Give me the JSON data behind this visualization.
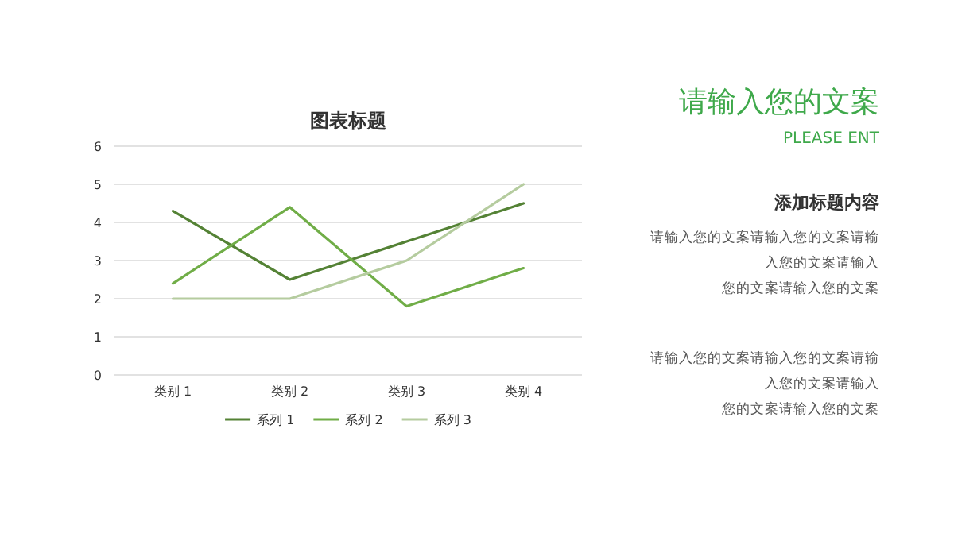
{
  "chart_data": {
    "type": "line",
    "title": "图表标题",
    "categories": [
      "类别 1",
      "类别 2",
      "类别 3",
      "类别 4"
    ],
    "series": [
      {
        "name": "系列 1",
        "color": "#548235",
        "values": [
          4.3,
          2.5,
          3.5,
          4.5
        ]
      },
      {
        "name": "系列 2",
        "color": "#70ad47",
        "values": [
          2.4,
          4.4,
          1.8,
          2.8
        ]
      },
      {
        "name": "系列 3",
        "color": "#b5cc9f",
        "values": [
          2,
          2,
          3,
          5
        ]
      }
    ],
    "ylim": [
      0,
      6
    ],
    "yticks": [
      0,
      1,
      2,
      3,
      4,
      5,
      6
    ],
    "grid": "y",
    "legend": "bottom",
    "marker": "none",
    "line_style": "solid",
    "annotations": [
      "请输入您的文案",
      "PLEASE ENT",
      "添加标题内容",
      "请输入您的文案请输入您的文案请输",
      "入您的文案请输入",
      "您的文案请输入您的文案",
      "请输入您的文案请输入您的文案请输",
      "入您的文案请输入",
      "您的文案请输入您的文案"
    ]
  }
}
